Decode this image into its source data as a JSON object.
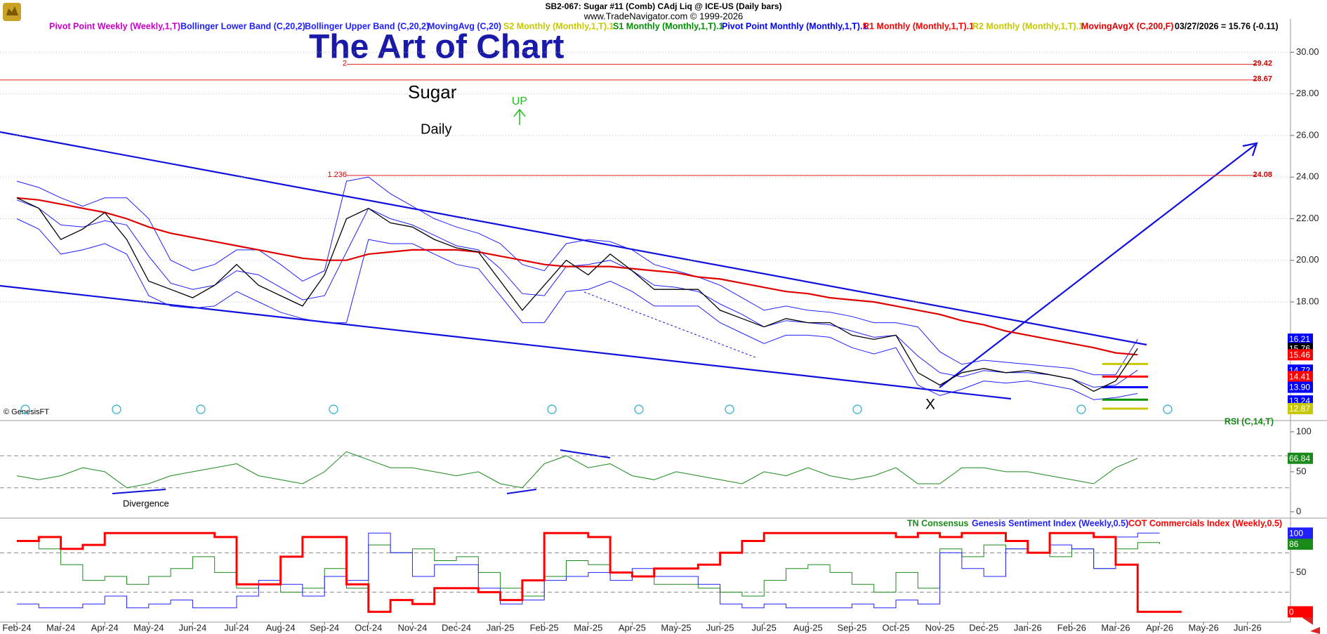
{
  "chart_data": [
    {
      "type": "line",
      "title": "SB2-067:  Sugar #11 (Comb) CAdj Liq @ ICE-US  (Daily bars)",
      "subtitle": "www.TradeNavigator.com © 1999-2026",
      "status": "03/27/2026 = 15.76 (-0.11)",
      "annotations": {
        "headline": "The Art of Chart",
        "symbol": "Sugar",
        "period": "Daily",
        "signal": "UP",
        "pivot_mark": "X",
        "credit": "© GenesisFT"
      },
      "color": "#000000",
      "values": [
        23.0,
        22.5,
        21.0,
        21.5,
        22.3,
        21.0,
        19.0,
        18.6,
        18.2,
        18.8,
        19.8,
        18.8,
        18.3,
        17.8,
        19.3,
        22.0,
        22.5,
        21.8,
        21.6,
        21.0,
        20.6,
        20.4,
        19.0,
        17.6,
        18.8,
        20.0,
        19.3,
        20.3,
        19.5,
        18.6,
        18.6,
        18.6,
        17.6,
        17.2,
        16.8,
        17.2,
        17.0,
        17.0,
        16.4,
        16.2,
        16.4,
        14.6,
        14.0,
        14.6,
        14.8,
        14.6,
        14.7,
        14.5,
        14.3,
        13.7,
        14.2,
        15.76,
        null,
        null,
        null,
        null,
        null,
        null
      ],
      "series": [
        {
          "name": "Pivot Point Weekly (Weekly,1,T)",
          "color": "#cc00cc"
        },
        {
          "name": "Bollinger Lower Band (C,20,2)",
          "color": "#2020ff",
          "values": [
            22.0,
            21.5,
            20.3,
            20.5,
            20.8,
            20.3,
            18.3,
            17.8,
            17.7,
            17.8,
            18.5,
            18.0,
            17.5,
            17.2,
            17.0,
            17.0,
            21.0,
            20.8,
            20.8,
            20.3,
            19.8,
            19.6,
            18.3,
            17.0,
            17.0,
            18.5,
            18.6,
            19.0,
            18.5,
            17.8,
            17.8,
            17.8,
            17.0,
            16.5,
            16.0,
            16.4,
            16.4,
            16.3,
            15.8,
            15.5,
            15.8,
            14.0,
            13.5,
            13.8,
            14.2,
            14.1,
            14.2,
            14.0,
            13.8,
            13.3,
            13.4,
            13.6,
            null,
            null,
            null,
            null,
            null,
            null
          ]
        },
        {
          "name": "Bollinger Upper Band (C,20,2)",
          "color": "#2020ff",
          "values": [
            23.8,
            23.5,
            23.0,
            22.6,
            23.0,
            23.0,
            22.0,
            20.0,
            19.5,
            19.8,
            20.5,
            20.5,
            19.8,
            19.0,
            19.5,
            23.8,
            24.0,
            23.2,
            22.6,
            22.0,
            21.6,
            21.3,
            20.8,
            19.8,
            19.5,
            20.8,
            21.0,
            20.9,
            20.5,
            19.8,
            19.5,
            19.2,
            18.8,
            18.2,
            17.6,
            17.8,
            17.6,
            17.5,
            17.3,
            17.0,
            17.0,
            16.8,
            15.6,
            15.0,
            15.2,
            15.1,
            15.0,
            14.9,
            14.8,
            14.5,
            14.5,
            16.21,
            null,
            null,
            null,
            null,
            null,
            null
          ]
        },
        {
          "name": "MovingAvg (C,20)",
          "color": "#2020ff",
          "values": [
            22.9,
            22.5,
            21.7,
            21.6,
            21.9,
            21.7,
            20.2,
            18.9,
            18.6,
            18.8,
            19.5,
            19.3,
            18.7,
            18.1,
            18.3,
            20.4,
            22.5,
            22.0,
            21.7,
            21.2,
            20.7,
            20.5,
            19.6,
            18.4,
            18.3,
            19.7,
            19.8,
            20.0,
            19.5,
            18.8,
            18.7,
            18.5,
            17.9,
            17.4,
            16.8,
            17.1,
            17.0,
            16.9,
            16.6,
            16.3,
            16.4,
            15.4,
            14.6,
            14.4,
            14.7,
            14.6,
            14.6,
            14.5,
            14.3,
            13.9,
            14.0,
            14.72,
            null,
            null,
            null,
            null,
            null,
            null
          ]
        },
        {
          "name": "S2 Monthly (Monthly,1,T).1",
          "color": "#c8c800",
          "level": 12.87
        },
        {
          "name": "S1 Monthly (Monthly,1,T).1",
          "color": "#009000",
          "level": 13.3
        },
        {
          "name": "Pivot Point Monthly (Monthly,1,T).1",
          "color": "#0000ff",
          "level": 13.9
        },
        {
          "name": "R1 Monthly (Monthly,1,T).1",
          "color": "#ff0000",
          "level": 14.41
        },
        {
          "name": "R2 Monthly (Monthly,1,T).1",
          "color": "#c8c800",
          "level": 15.02
        },
        {
          "name": "MovingAvgX (C,200,F)",
          "color": "#e00000",
          "values": [
            23.0,
            22.9,
            22.7,
            22.5,
            22.3,
            22.0,
            21.6,
            21.3,
            21.1,
            20.9,
            20.7,
            20.5,
            20.3,
            20.1,
            20.0,
            20.0,
            20.3,
            20.4,
            20.5,
            20.5,
            20.5,
            20.4,
            20.2,
            20.0,
            19.8,
            19.7,
            19.7,
            19.7,
            19.6,
            19.5,
            19.4,
            19.2,
            19.1,
            18.9,
            18.7,
            18.5,
            18.4,
            18.2,
            18.1,
            18.0,
            17.8,
            17.6,
            17.4,
            17.1,
            16.9,
            16.6,
            16.4,
            16.2,
            16.0,
            15.8,
            15.55,
            15.46,
            null,
            null,
            null,
            null,
            null,
            null
          ]
        }
      ],
      "levels": [
        {
          "value": 29.42,
          "name": "2"
        },
        {
          "value": 28.67
        },
        {
          "value": 24.08,
          "name": "1.236"
        }
      ],
      "price_tags": [
        {
          "value": 16.21,
          "color": "#0000ff"
        },
        {
          "value": 15.76,
          "color": "#000000"
        },
        {
          "value": 15.46,
          "color": "#ff0000"
        },
        {
          "value": 14.72,
          "color": "#0000ff"
        },
        {
          "value": 14.41,
          "color": "#ff0000"
        },
        {
          "value": 13.9,
          "label": "13.90",
          "color": "#0000ff"
        },
        {
          "value": 13.24,
          "color": "#0000ff"
        },
        {
          "value": 12.87,
          "color": "#c8c800"
        }
      ],
      "ylim": [
        12.5,
        31.6
      ],
      "yticks": [
        {
          "value": 18,
          "label": "18.00"
        },
        {
          "value": 20,
          "label": "20.00"
        },
        {
          "value": 22,
          "label": "22.00"
        },
        {
          "value": 24,
          "label": "24.00"
        },
        {
          "value": 26,
          "label": "26.00"
        },
        {
          "value": 28,
          "label": "28.00"
        },
        {
          "value": 30,
          "label": "30.00"
        }
      ],
      "grid": true
    },
    {
      "type": "line",
      "title": "RSI (C,14,T)",
      "annotation": "Divergence",
      "color": "#1a8a1a",
      "values": [
        45,
        40,
        45,
        55,
        50,
        30,
        35,
        45,
        50,
        55,
        60,
        45,
        40,
        35,
        50,
        75,
        65,
        55,
        55,
        50,
        45,
        50,
        35,
        30,
        60,
        70,
        55,
        60,
        45,
        40,
        50,
        45,
        40,
        35,
        50,
        45,
        55,
        45,
        40,
        45,
        55,
        35,
        35,
        55,
        55,
        50,
        50,
        45,
        40,
        35,
        55,
        66.84,
        null,
        null,
        null,
        null,
        null,
        null
      ],
      "levels": [
        30,
        70
      ],
      "ylim": [
        -8,
        114
      ],
      "yticks": [
        0,
        50,
        100
      ]
    },
    {
      "type": "step",
      "categories": [
        "Feb-24",
        null,
        "Mar-24",
        null,
        "Apr-24",
        null,
        "May-24",
        null,
        "Jun-24",
        null,
        "Jul-24",
        null,
        "Aug-24",
        null,
        "Sep-24",
        null,
        "Oct-24",
        null,
        "Nov-24",
        null,
        "Dec-24",
        null,
        "Jan-25",
        null,
        "Feb-25",
        null,
        "Mar-25",
        null,
        "Apr-25",
        null,
        "May-25",
        null,
        "Jun-25",
        null,
        "Jul-25",
        null,
        "Aug-25",
        null,
        "Sep-25",
        null,
        "Oct-25",
        null,
        "Nov-25",
        null,
        "Dec-25",
        null,
        "Jan-26",
        null,
        "Feb-26",
        null,
        "Mar-26",
        null,
        "Apr-26",
        null,
        "May-26",
        null,
        "Jun-26",
        null
      ],
      "series": [
        {
          "name": "TN Consensus",
          "color": "#1a8a1a",
          "values": [
            90,
            80,
            60,
            40,
            45,
            35,
            45,
            55,
            70,
            50,
            30,
            35,
            25,
            30,
            55,
            30,
            85,
            75,
            80,
            65,
            70,
            50,
            30,
            20,
            45,
            65,
            60,
            50,
            45,
            35,
            35,
            30,
            25,
            20,
            40,
            55,
            60,
            50,
            35,
            25,
            50,
            30,
            80,
            70,
            85,
            80,
            75,
            70,
            80,
            55,
            80,
            88,
            86,
            null,
            null,
            null,
            null,
            null
          ]
        },
        {
          "name": "Genesis Sentiment Index (Weekly,0.5)",
          "color": "#2020ff",
          "values": [
            10,
            5,
            5,
            10,
            20,
            5,
            10,
            15,
            5,
            5,
            20,
            40,
            35,
            20,
            45,
            40,
            100,
            75,
            45,
            60,
            60,
            30,
            10,
            15,
            40,
            45,
            50,
            40,
            55,
            45,
            45,
            35,
            10,
            5,
            10,
            5,
            5,
            5,
            10,
            5,
            15,
            10,
            75,
            55,
            45,
            80,
            75,
            85,
            80,
            55,
            95,
            100,
            100,
            null,
            null,
            null,
            null,
            null
          ]
        },
        {
          "name": "COT Commercials Index (Weekly,0.5)",
          "color": "#ff0000",
          "values": [
            90,
            95,
            80,
            85,
            100,
            100,
            100,
            100,
            100,
            95,
            35,
            35,
            70,
            95,
            95,
            35,
            0,
            15,
            10,
            30,
            30,
            25,
            15,
            40,
            100,
            100,
            95,
            50,
            45,
            55,
            55,
            60,
            75,
            90,
            100,
            100,
            100,
            100,
            100,
            100,
            95,
            100,
            95,
            100,
            100,
            90,
            75,
            100,
            100,
            95,
            60,
            0,
            0,
            0,
            null,
            null,
            null,
            null
          ]
        }
      ],
      "levels": [
        25,
        75
      ],
      "ylim": [
        -13,
        119
      ],
      "yticks": [
        0,
        50,
        100
      ]
    }
  ]
}
